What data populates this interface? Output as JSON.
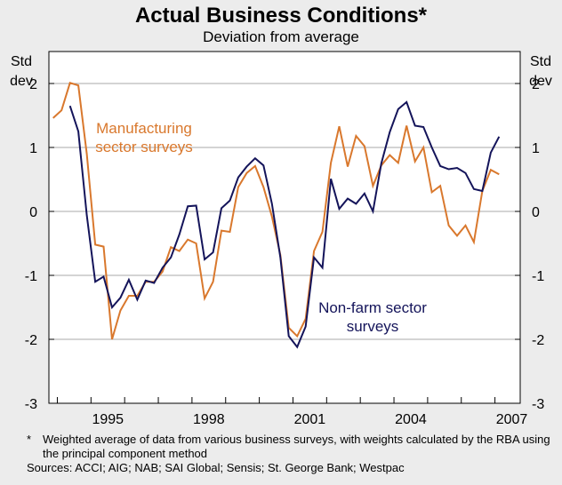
{
  "chart_data": {
    "type": "line",
    "title": "Actual Business Conditions*",
    "subtitle": "Deviation from average",
    "ylabel_left": [
      "Std",
      "dev"
    ],
    "ylabel_right": [
      "Std",
      "dev"
    ],
    "ylim": [
      -3,
      2.5
    ],
    "yticks": [
      2,
      1,
      0,
      -1,
      -2,
      -3
    ],
    "xlim": [
      1993.75,
      2007.75
    ],
    "xticks": [
      1995,
      1998,
      2001,
      2004,
      2007
    ],
    "grid": true,
    "series": [
      {
        "name": "Manufacturing sector surveys",
        "label_lines": [
          "Manufacturing",
          "sector surveys"
        ],
        "color": "#d9782d",
        "x": [
          1993.875,
          1994.125,
          1994.375,
          1994.625,
          1994.875,
          1995.125,
          1995.375,
          1995.625,
          1995.875,
          1996.125,
          1996.375,
          1996.625,
          1996.875,
          1997.125,
          1997.375,
          1997.625,
          1997.875,
          1998.125,
          1998.375,
          1998.625,
          1998.875,
          1999.125,
          1999.375,
          1999.625,
          1999.875,
          2000.125,
          2000.375,
          2000.625,
          2000.875,
          2001.125,
          2001.375,
          2001.625,
          2001.875,
          2002.125,
          2002.375,
          2002.625,
          2002.875,
          2003.125,
          2003.375,
          2003.625,
          2003.875,
          2004.125,
          2004.375,
          2004.625,
          2004.875,
          2005.125,
          2005.375,
          2005.625,
          2005.875,
          2006.125,
          2006.375,
          2006.625,
          2006.875,
          2007.125
        ],
        "values": [
          1.46,
          1.58,
          2.01,
          1.97,
          0.9,
          -0.52,
          -0.55,
          -2.0,
          -1.55,
          -1.32,
          -1.32,
          -1.1,
          -1.1,
          -0.94,
          -0.56,
          -0.62,
          -0.44,
          -0.5,
          -1.36,
          -1.1,
          -0.3,
          -0.32,
          0.38,
          0.6,
          0.71,
          0.38,
          -0.08,
          -0.68,
          -1.82,
          -1.95,
          -1.68,
          -0.62,
          -0.32,
          0.76,
          1.33,
          0.7,
          1.18,
          1.02,
          0.4,
          0.72,
          0.88,
          0.76,
          1.34,
          0.78,
          1.0,
          0.3,
          0.4,
          -0.22,
          -0.38,
          -0.22,
          -0.48,
          0.32,
          0.65,
          0.58
        ]
      },
      {
        "name": "Non-farm sector surveys",
        "label_lines": [
          "Non-farm sector",
          "surveys"
        ],
        "color": "#14145a",
        "x": [
          1994.375,
          1994.625,
          1994.875,
          1995.125,
          1995.375,
          1995.625,
          1995.875,
          1996.125,
          1996.375,
          1996.625,
          1996.875,
          1997.125,
          1997.375,
          1997.625,
          1997.875,
          1998.125,
          1998.375,
          1998.625,
          1998.875,
          1999.125,
          1999.375,
          1999.625,
          1999.875,
          2000.125,
          2000.375,
          2000.625,
          2000.875,
          2001.125,
          2001.375,
          2001.625,
          2001.875,
          2002.125,
          2002.375,
          2002.625,
          2002.875,
          2003.125,
          2003.375,
          2003.625,
          2003.875,
          2004.125,
          2004.375,
          2004.625,
          2004.875,
          2005.125,
          2005.375,
          2005.625,
          2005.875,
          2006.125,
          2006.375,
          2006.625,
          2006.875,
          2007.125
        ],
        "values": [
          1.65,
          1.25,
          -0.06,
          -1.1,
          -1.02,
          -1.5,
          -1.35,
          -1.07,
          -1.38,
          -1.08,
          -1.12,
          -0.88,
          -0.72,
          -0.36,
          0.08,
          0.09,
          -0.75,
          -0.64,
          0.05,
          0.17,
          0.53,
          0.7,
          0.83,
          0.72,
          0.12,
          -0.72,
          -1.95,
          -2.12,
          -1.8,
          -0.72,
          -0.88,
          0.51,
          0.04,
          0.2,
          0.12,
          0.28,
          0.0,
          0.75,
          1.24,
          1.6,
          1.71,
          1.34,
          1.32,
          1.0,
          0.71,
          0.66,
          0.68,
          0.6,
          0.35,
          0.32,
          0.92,
          1.17
        ]
      }
    ]
  },
  "footnotes": {
    "mark": "*",
    "note": "Weighted average of data from various business surveys, with weights calculated by the RBA using the principal component method",
    "sources": "Sources: ACCI; AIG; NAB; SAI Global; Sensis; St. George Bank; Westpac"
  }
}
